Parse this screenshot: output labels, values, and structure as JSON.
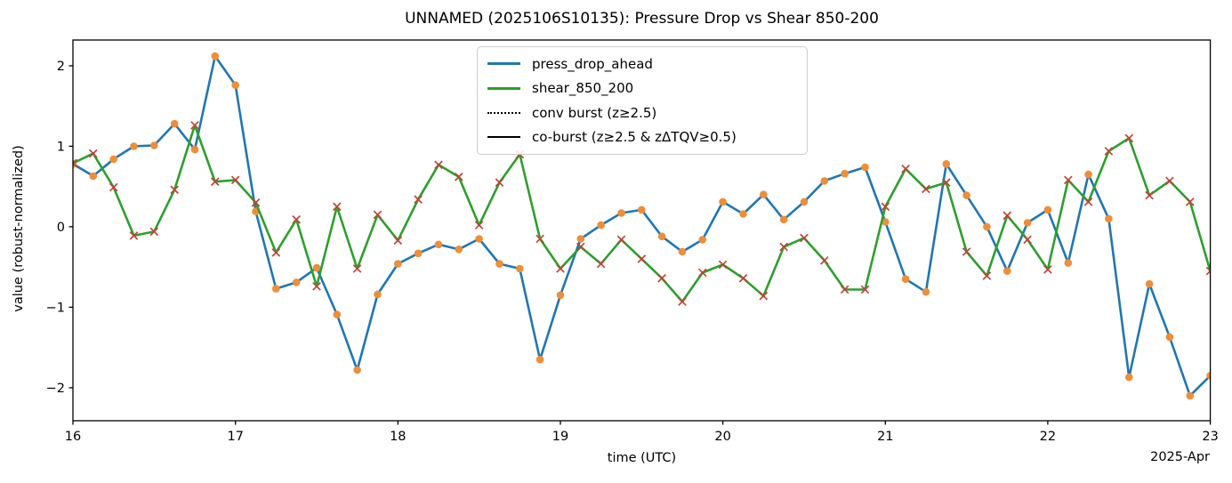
{
  "figure": {
    "title": "UNNAMED (2025106S10135): Pressure Drop vs Shear 850-200",
    "xlabel": "time (UTC)",
    "ylabel": "value (robust-normalized)",
    "corner_date_label": "2025-Apr"
  },
  "legend": {
    "items": [
      {
        "label": "press_drop_ahead",
        "swatch": "solid-blue"
      },
      {
        "label": "shear_850_200",
        "swatch": "solid-green"
      },
      {
        "label": "conv burst (z≥2.5)",
        "swatch": "dotted-black"
      },
      {
        "label": "co-burst (z≥2.5 & zΔTQV≥0.5)",
        "swatch": "solid-black"
      }
    ]
  },
  "chart_data": {
    "type": "line",
    "title": "UNNAMED (2025106S10135): Pressure Drop vs Shear 850-200",
    "xlabel": "time (UTC)",
    "ylabel": "value (robust-normalized)",
    "x_axis_note": "days of 2025-Apr (UTC), samples every 0.125 day (3-hourly)",
    "x_start_day": 16.0,
    "x_step_days": 0.125,
    "n_points": 57,
    "xlim": [
      16,
      23
    ],
    "ylim": [
      -2.41,
      2.32
    ],
    "grid": false,
    "x_ticks": [
      {
        "v": 16,
        "label": "16"
      },
      {
        "v": 17,
        "label": "17"
      },
      {
        "v": 18,
        "label": "18"
      },
      {
        "v": 19,
        "label": "19"
      },
      {
        "v": 20,
        "label": "20"
      },
      {
        "v": 21,
        "label": "21"
      },
      {
        "v": 22,
        "label": "22"
      },
      {
        "v": 23,
        "label": "23"
      }
    ],
    "y_ticks": [
      {
        "v": 2,
        "label": "2"
      },
      {
        "v": 1,
        "label": "1"
      },
      {
        "v": 0,
        "label": "0"
      },
      {
        "v": -1,
        "label": "−1"
      },
      {
        "v": -2,
        "label": "−2"
      }
    ],
    "series": [
      {
        "name": "press_drop_ahead",
        "line_color": "#1f77b4",
        "marker": "circle",
        "marker_color": "#ef8e38",
        "values": [
          0.78,
          0.63,
          0.84,
          1.0,
          1.01,
          1.28,
          0.96,
          2.12,
          1.76,
          0.19,
          -0.77,
          -0.69,
          -0.51,
          -1.09,
          -1.78,
          -0.84,
          -0.46,
          -0.33,
          -0.22,
          -0.28,
          -0.15,
          -0.46,
          -0.52,
          -1.65,
          -0.85,
          -0.15,
          0.02,
          0.17,
          0.21,
          -0.12,
          -0.31,
          -0.16,
          0.31,
          0.16,
          0.4,
          0.09,
          0.31,
          0.57,
          0.66,
          0.74,
          0.06,
          -0.65,
          -0.81,
          0.78,
          0.39,
          0.0,
          -0.55,
          0.05,
          0.21,
          -0.45,
          0.65,
          0.1,
          -1.87,
          -0.71,
          -1.37,
          -2.1,
          -1.85
        ]
      },
      {
        "name": "shear_850_200",
        "line_color": "#2ca02c",
        "marker": "x",
        "marker_color": "#bf4438",
        "values": [
          0.79,
          0.91,
          0.49,
          -0.11,
          -0.06,
          0.46,
          1.26,
          0.56,
          0.58,
          0.3,
          -0.32,
          0.09,
          -0.74,
          0.25,
          -0.52,
          0.15,
          -0.17,
          0.34,
          0.77,
          0.62,
          0.02,
          0.55,
          0.9,
          -0.15,
          -0.52,
          -0.25,
          -0.46,
          -0.16,
          -0.4,
          -0.64,
          -0.93,
          -0.57,
          -0.47,
          -0.64,
          -0.86,
          -0.25,
          -0.14,
          -0.42,
          -0.78,
          -0.78,
          0.25,
          0.72,
          0.47,
          0.55,
          -0.31,
          -0.61,
          0.14,
          -0.16,
          -0.53,
          0.58,
          0.31,
          0.94,
          1.1,
          0.39,
          0.57,
          0.31,
          -0.55
        ]
      }
    ]
  }
}
